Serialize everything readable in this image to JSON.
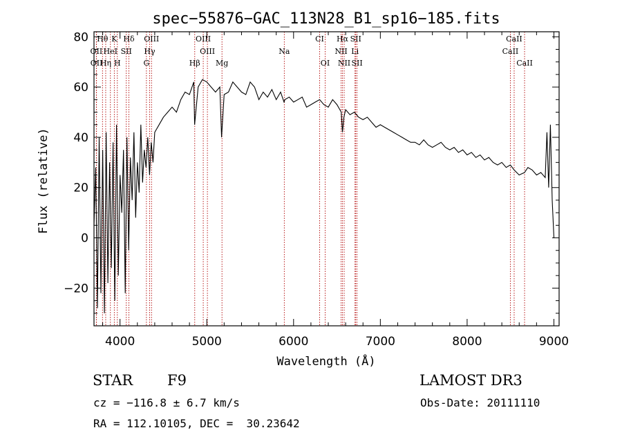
{
  "chart_data": {
    "type": "line",
    "title": "spec−55876−GAC_113N28_B1_sp16−185.fits",
    "xlabel": "Wavelength (Å)",
    "ylabel": "Flux (relative)",
    "xlim": [
      3700,
      9060
    ],
    "ylim": [
      -35,
      82
    ],
    "x_ticks": [
      4000,
      5000,
      6000,
      7000,
      8000,
      9000
    ],
    "x_tick_labels": [
      "4000",
      "5000",
      "6000",
      "7000",
      "8000",
      "9000"
    ],
    "y_ticks": [
      -20,
      0,
      20,
      40,
      60,
      80
    ],
    "y_tick_labels": [
      "−20",
      "0",
      "20",
      "40",
      "60",
      "80"
    ],
    "series": [
      {
        "name": "flux",
        "x": [
          3700,
          3720,
          3740,
          3760,
          3780,
          3800,
          3820,
          3840,
          3860,
          3880,
          3900,
          3920,
          3940,
          3960,
          3980,
          4000,
          4020,
          4040,
          4060,
          4080,
          4100,
          4120,
          4140,
          4160,
          4180,
          4200,
          4220,
          4240,
          4260,
          4280,
          4300,
          4320,
          4340,
          4360,
          4380,
          4400,
          4450,
          4500,
          4550,
          4600,
          4650,
          4700,
          4750,
          4800,
          4850,
          4860,
          4900,
          4950,
          5000,
          5050,
          5100,
          5150,
          5170,
          5200,
          5250,
          5300,
          5350,
          5400,
          5450,
          5500,
          5550,
          5600,
          5650,
          5700,
          5750,
          5800,
          5850,
          5890,
          5900,
          5950,
          6000,
          6050,
          6100,
          6150,
          6200,
          6250,
          6300,
          6350,
          6400,
          6450,
          6500,
          6550,
          6563,
          6580,
          6600,
          6650,
          6700,
          6750,
          6800,
          6850,
          6900,
          6950,
          7000,
          7050,
          7100,
          7150,
          7200,
          7250,
          7300,
          7350,
          7400,
          7450,
          7500,
          7550,
          7600,
          7650,
          7700,
          7750,
          7800,
          7850,
          7900,
          7950,
          8000,
          8050,
          8100,
          8150,
          8200,
          8250,
          8300,
          8350,
          8400,
          8450,
          8498,
          8542,
          8600,
          8662,
          8700,
          8750,
          8800,
          8850,
          8900,
          8920,
          8940,
          8960,
          8980,
          9000
        ],
        "y": [
          5,
          28,
          -28,
          40,
          -22,
          35,
          -30,
          42,
          -18,
          30,
          -12,
          38,
          -25,
          45,
          -15,
          25,
          10,
          35,
          -22,
          40,
          -5,
          32,
          15,
          42,
          8,
          30,
          18,
          45,
          22,
          35,
          28,
          40,
          25,
          38,
          30,
          42,
          45,
          48,
          50,
          52,
          50,
          55,
          58,
          57,
          62,
          45,
          60,
          63,
          62,
          60,
          58,
          60,
          40,
          57,
          58,
          62,
          60,
          58,
          57,
          62,
          60,
          55,
          58,
          56,
          59,
          55,
          58,
          54,
          55,
          56,
          54,
          55,
          56,
          52,
          53,
          54,
          55,
          53,
          52,
          55,
          53,
          50,
          42,
          48,
          51,
          49,
          50,
          48,
          47,
          48,
          46,
          44,
          45,
          44,
          43,
          42,
          41,
          40,
          39,
          38,
          38,
          37,
          39,
          37,
          36,
          37,
          38,
          36,
          35,
          36,
          34,
          35,
          33,
          34,
          32,
          33,
          31,
          32,
          30,
          29,
          30,
          28,
          29,
          27,
          25,
          26,
          28,
          27,
          25,
          26,
          24,
          42,
          20,
          45,
          15,
          0
        ],
        "color": "#000000"
      }
    ],
    "annotations": {
      "lines": [
        {
          "label": "Hθ",
          "x": 3798
        },
        {
          "label": "K",
          "x": 3934
        },
        {
          "label": "Hδ",
          "x": 4102
        },
        {
          "label": "OIII",
          "x": 4363
        },
        {
          "label": "OIII",
          "x": 4959
        },
        {
          "label": "CI",
          "x": 6300
        },
        {
          "label": "Hα",
          "x": 6563
        },
        {
          "label": "SII",
          "x": 6716
        },
        {
          "label": "CaII",
          "x": 8542
        },
        {
          "label": "OII",
          "x": 3727
        },
        {
          "label": "HeI",
          "x": 3889
        },
        {
          "label": "SII",
          "x": 4072
        },
        {
          "label": "Hγ",
          "x": 4341
        },
        {
          "label": "OIII",
          "x": 5007
        },
        {
          "label": "Na",
          "x": 5893
        },
        {
          "label": "NII",
          "x": 6548
        },
        {
          "label": "Li",
          "x": 6708
        },
        {
          "label": "CaII",
          "x": 8498
        },
        {
          "label": "OII",
          "x": 3729
        },
        {
          "label": "Hη",
          "x": 3835
        },
        {
          "label": "H",
          "x": 3969
        },
        {
          "label": "G",
          "x": 4304
        },
        {
          "label": "Hβ",
          "x": 4861
        },
        {
          "label": "Mg",
          "x": 5175
        },
        {
          "label": "OI",
          "x": 6364
        },
        {
          "label": "NII",
          "x": 6583
        },
        {
          "label": "SII",
          "x": 6731
        },
        {
          "label": "CaII",
          "x": 8662
        }
      ]
    }
  },
  "info": {
    "object_class": "STAR",
    "subclass": "F9",
    "survey": "LAMOST DR3",
    "redshift": "cz = −116.8 ± 6.7 km/s",
    "obs_date": "Obs-Date: 20111110",
    "coords": "RA = 112.10105, DEC =  30.23642"
  },
  "colors": {
    "line_marker": "#b00000",
    "spectrum": "#000000"
  }
}
